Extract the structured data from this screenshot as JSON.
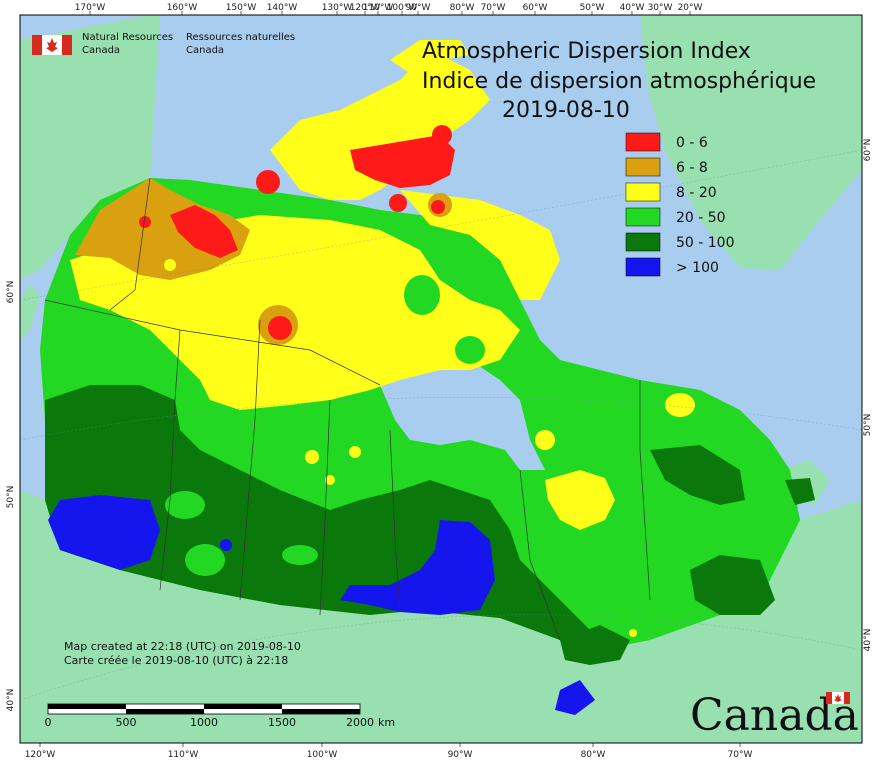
{
  "title_en": "Atmospheric Dispersion Index",
  "title_fr": "Indice de dispersion atmosphérique",
  "date": "2019-08-10",
  "agency": {
    "en_line1": "Natural Resources",
    "en_line2": "Canada",
    "fr_line1": "Ressources naturelles",
    "fr_line2": "Canada"
  },
  "legend": [
    {
      "label": "0 - 6",
      "color": "#ff1a1a"
    },
    {
      "label": "6 - 8",
      "color": "#d9a010"
    },
    {
      "label": "8 - 20",
      "color": "#ffff1a"
    },
    {
      "label": "20 - 50",
      "color": "#22d822"
    },
    {
      "label": "50 - 100",
      "color": "#0a780a"
    },
    {
      "label": "> 100",
      "color": "#1515ee"
    }
  ],
  "credit_en": "Map created at 22:18 (UTC) on 2019-08-10",
  "credit_fr": "Carte créée le 2019-08-10 (UTC) à 22:18",
  "scale": {
    "labels": [
      "0",
      "500",
      "1000",
      "1500",
      "2000"
    ],
    "unit": "km"
  },
  "wordmark": "Canada",
  "top_ticks": [
    "170°W",
    "160°W",
    "150°W",
    "140°W",
    "130°W",
    "120°W",
    "110°W",
    "100°W",
    "90°W",
    "80°W",
    "70°W",
    "60°W",
    "50°W",
    "40°W",
    "30°W",
    "20°W"
  ],
  "bottom_ticks": [
    "120°W",
    "110°W",
    "100°W",
    "90°W",
    "80°W",
    "70°W"
  ],
  "left_ticks": [
    "60°N",
    "50°N",
    "40°N"
  ],
  "right_ticks": [
    "60°N",
    "50°N",
    "40°N"
  ],
  "colors": {
    "ocean": "#a9cdee",
    "land": "#98e0b0"
  }
}
